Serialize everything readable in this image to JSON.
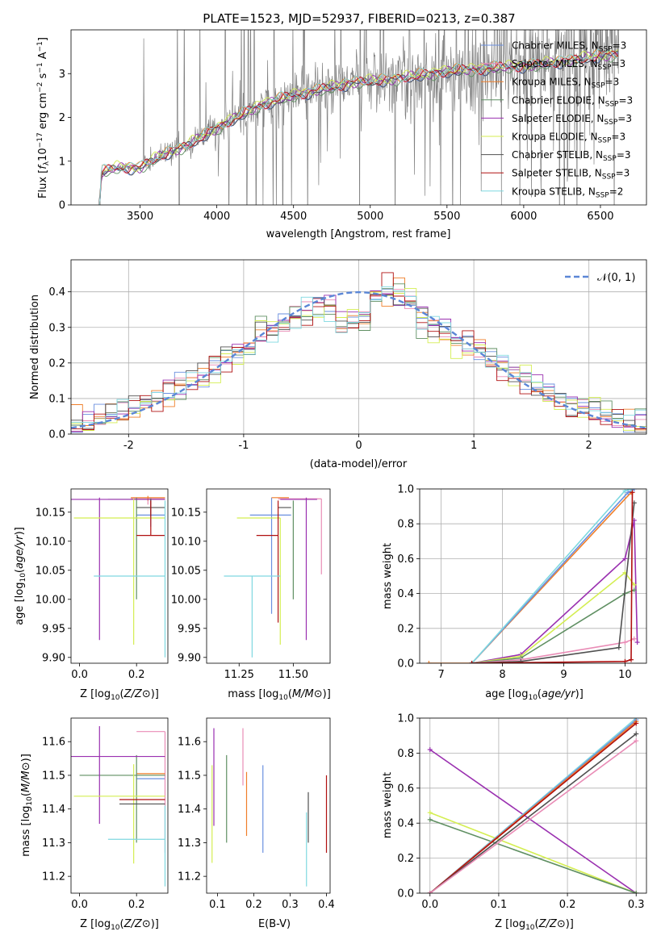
{
  "figure": {
    "title": "PLATE=1523, MJD=52937, FIBERID=0213, z=0.387"
  },
  "colors": {
    "data_spectrum": "#808080",
    "chabrier_miles": "#6a8fdf",
    "salpeter_miles": "#e98cb6",
    "kroupa_miles": "#ef7f2a",
    "chabrier_elodie": "#5f8f62",
    "salpeter_elodie": "#9a30b0",
    "kroupa_elodie": "#d4ee52",
    "chabrier_stelib": "#505050",
    "salpeter_stelib": "#b01010",
    "kroupa_stelib": "#7fd8e0",
    "gaussian": "#5b86d6",
    "grid": "#b0b0b0"
  },
  "legend_spectrum": [
    {
      "name": "Chabrier MILES, N",
      "sub": "SSP",
      "suffix": "=3",
      "color_key": "chabrier_miles"
    },
    {
      "name": "Salpeter MILES, N",
      "sub": "SSP",
      "suffix": "=3",
      "color_key": "salpeter_miles"
    },
    {
      "name": "Kroupa MILES, N",
      "sub": "SSP",
      "suffix": "=3",
      "color_key": "kroupa_miles"
    },
    {
      "name": "Chabrier ELODIE, N",
      "sub": "SSP",
      "suffix": "=3",
      "color_key": "chabrier_elodie"
    },
    {
      "name": "Salpeter ELODIE, N",
      "sub": "SSP",
      "suffix": "=3",
      "color_key": "salpeter_elodie"
    },
    {
      "name": "Kroupa ELODIE, N",
      "sub": "SSP",
      "suffix": "=3",
      "color_key": "kroupa_elodie"
    },
    {
      "name": "Chabrier STELIB, N",
      "sub": "SSP",
      "suffix": "=3",
      "color_key": "chabrier_stelib"
    },
    {
      "name": "Salpeter STELIB, N",
      "sub": "SSP",
      "suffix": "=3",
      "color_key": "salpeter_stelib"
    },
    {
      "name": "Kroupa STELIB, N",
      "sub": "SSP",
      "suffix": "=2",
      "color_key": "kroupa_stelib"
    }
  ],
  "legend_residual": {
    "label": "𝒩(0, 1)"
  },
  "chart_data": [
    {
      "id": "spectrum",
      "type": "line",
      "xlabel": "wavelength [Angstrom, rest frame]",
      "ylabel_parts": [
        "Flux [",
        "f",
        "λ",
        "10",
        "−17",
        " erg cm",
        "−2",
        " s",
        "−1",
        " A",
        "−1",
        "]"
      ],
      "xlim": [
        3050,
        6800
      ],
      "ylim": [
        0,
        4
      ],
      "xticks": [
        3500,
        4000,
        4500,
        5000,
        5500,
        6000,
        6500
      ],
      "yticks": [
        0,
        1,
        2,
        3
      ],
      "data_range": [
        3230,
        6620
      ],
      "model_anchors": {
        "x": [
          3230,
          3250,
          3350,
          3500,
          3650,
          3800,
          3950,
          4100,
          4300,
          4500,
          4700,
          4900,
          5100,
          5300,
          5500,
          5700,
          5900,
          6100,
          6300,
          6500,
          6620
        ],
        "y": [
          0.0,
          0.75,
          0.85,
          0.85,
          1.15,
          1.35,
          1.65,
          1.95,
          2.3,
          2.5,
          2.65,
          2.8,
          2.85,
          2.95,
          3.05,
          3.1,
          3.15,
          3.2,
          3.3,
          3.4,
          3.45
        ]
      },
      "grid": false
    },
    {
      "id": "residual_hist",
      "type": "histogram",
      "xlabel": "(data-model)/error",
      "ylabel": "Normed distribution",
      "xlim": [
        -2.5,
        2.5
      ],
      "ylim": [
        0,
        0.49
      ],
      "xticks": [
        -2,
        -1,
        0,
        1,
        2
      ],
      "yticks": [
        0.0,
        0.1,
        0.2,
        0.3,
        0.4
      ],
      "bin_width": 0.1,
      "reference_curve": "normal(0,1)",
      "grid": true
    },
    {
      "id": "age_vs_Z",
      "type": "errorbar",
      "xlabel": "Z [log10(Z/Z⊙)]",
      "ylabel": "age [log10(age/yr)]",
      "xlim": [
        -0.03,
        0.31
      ],
      "ylim": [
        9.89,
        10.19
      ],
      "xticks": [
        0.0,
        0.2
      ],
      "yticks": [
        9.9,
        9.95,
        10.0,
        10.05,
        10.1,
        10.15
      ],
      "points": [
        {
          "color_key": "chabrier_miles",
          "x": 0.25,
          "xerr": [
            0.05,
            0.05
          ],
          "y": 10.145,
          "yerr": [
            0.02,
            0.03
          ]
        },
        {
          "color_key": "salpeter_miles",
          "x": 0.24,
          "xerr": [
            0.06,
            0.06
          ],
          "y": 10.173,
          "yerr": [
            0.01,
            0.003
          ]
        },
        {
          "color_key": "kroupa_miles",
          "x": 0.24,
          "xerr": [
            0.06,
            0.06
          ],
          "y": 10.175,
          "yerr": [
            0.005,
            0.003
          ]
        },
        {
          "color_key": "chabrier_elodie",
          "x": 0.2,
          "xerr": [
            0.1,
            0.1
          ],
          "y": 10.172,
          "yerr": [
            0.172,
            0.003
          ]
        },
        {
          "color_key": "salpeter_elodie",
          "x": 0.07,
          "xerr": [
            0.1,
            0.23
          ],
          "y": 10.172,
          "yerr": [
            0.242,
            0.003
          ]
        },
        {
          "color_key": "kroupa_elodie",
          "x": 0.19,
          "xerr": [
            0.21,
            0.11
          ],
          "y": 10.14,
          "yerr": [
            0.218,
            0.033
          ]
        },
        {
          "color_key": "chabrier_stelib",
          "x": 0.25,
          "xerr": [
            0.05,
            0.05
          ],
          "y": 10.158,
          "yerr": [
            0.015,
            0.015
          ]
        },
        {
          "color_key": "salpeter_stelib",
          "x": 0.25,
          "xerr": [
            0.05,
            0.05
          ],
          "y": 10.11,
          "yerr": [
            0.0,
            0.06
          ]
        },
        {
          "color_key": "kroupa_stelib",
          "x": 0.15,
          "xerr": [
            0.1,
            0.15
          ],
          "y": 10.04,
          "yerr": [
            0.0,
            0.0
          ]
        },
        {
          "color_key": "kroupa_stelib",
          "x": 0.3,
          "xerr": [
            0.0,
            0.0
          ],
          "y": 10.0,
          "yerr": [
            0.1,
            0.17
          ]
        }
      ]
    },
    {
      "id": "age_vs_mass",
      "type": "errorbar",
      "xlabel": "mass [log10(M/M⊙)]",
      "ylabel": "",
      "xlim": [
        11.1,
        11.67
      ],
      "ylim": [
        9.89,
        10.19
      ],
      "xticks": [
        11.25,
        11.5
      ],
      "yticks": [
        9.9,
        9.95,
        10.0,
        10.05,
        10.1,
        10.15
      ],
      "points": [
        {
          "color_key": "chabrier_miles",
          "x": 11.4,
          "xerr": [
            0.1,
            0.09
          ],
          "y": 10.145,
          "yerr": [
            0.17,
            0.03
          ]
        },
        {
          "color_key": "salpeter_miles",
          "x": 11.63,
          "xerr": [
            0.2,
            0.0
          ],
          "y": 10.173,
          "yerr": [
            0.13,
            0.0
          ]
        },
        {
          "color_key": "kroupa_miles",
          "x": 11.48,
          "xerr": [
            0.08,
            0.0
          ],
          "y": 10.175,
          "yerr": [
            0.0,
            0.0
          ]
        },
        {
          "color_key": "chabrier_elodie",
          "x": 11.5,
          "xerr": [
            0.0,
            0.0
          ],
          "y": 10.1,
          "yerr": [
            0.1,
            0.07
          ]
        },
        {
          "color_key": "salpeter_elodie",
          "x": 11.56,
          "xerr": [
            0.12,
            0.05
          ],
          "y": 10.172,
          "yerr": [
            0.242,
            0.003
          ]
        },
        {
          "color_key": "kroupa_elodie",
          "x": 11.44,
          "xerr": [
            0.2,
            0.0
          ],
          "y": 10.14,
          "yerr": [
            0.218,
            0.0
          ]
        },
        {
          "color_key": "chabrier_stelib",
          "x": 11.43,
          "xerr": [
            0.0,
            0.06
          ],
          "y": 10.158,
          "yerr": [
            0.0,
            0.0
          ]
        },
        {
          "color_key": "salpeter_stelib",
          "x": 11.43,
          "xerr": [
            0.1,
            0.0
          ],
          "y": 10.11,
          "yerr": [
            0.15,
            0.06
          ]
        },
        {
          "color_key": "kroupa_stelib",
          "x": 11.31,
          "xerr": [
            0.13,
            0.13
          ],
          "y": 10.04,
          "yerr": [
            0.14,
            0.0
          ]
        }
      ]
    },
    {
      "id": "mass_weight_vs_age",
      "type": "line",
      "xlabel": "age [log10(age/yr)]",
      "ylabel": "mass weight",
      "xlim": [
        6.65,
        10.35
      ],
      "ylim": [
        0,
        1
      ],
      "xticks": [
        7,
        8,
        9,
        10
      ],
      "yticks": [
        0.0,
        0.2,
        0.4,
        0.6,
        0.8,
        1.0
      ],
      "grid": true,
      "series": [
        {
          "color_key": "kroupa_miles",
          "x": [
            6.8,
            7.5,
            10.1,
            10.12
          ],
          "y": [
            0.0,
            0.0,
            0.98,
            1.0
          ]
        },
        {
          "color_key": "chabrier_miles",
          "x": [
            7.5,
            10.05,
            10.15
          ],
          "y": [
            0.0,
            0.98,
            1.0
          ]
        },
        {
          "color_key": "kroupa_stelib",
          "x": [
            7.5,
            10.0,
            10.1
          ],
          "y": [
            0.0,
            0.99,
            1.0
          ]
        },
        {
          "color_key": "salpeter_elodie",
          "x": [
            7.5,
            8.3,
            10.0,
            10.15,
            10.2
          ],
          "y": [
            0.0,
            0.05,
            0.6,
            0.82,
            0.12
          ]
        },
        {
          "color_key": "kroupa_elodie",
          "x": [
            7.5,
            8.3,
            10.0,
            10.15
          ],
          "y": [
            0.0,
            0.04,
            0.52,
            0.45
          ]
        },
        {
          "color_key": "chabrier_elodie",
          "x": [
            7.5,
            8.3,
            10.0,
            10.15
          ],
          "y": [
            0.0,
            0.03,
            0.4,
            0.42
          ]
        },
        {
          "color_key": "salpeter_miles",
          "x": [
            7.5,
            8.3,
            10.0,
            10.15
          ],
          "y": [
            0.0,
            0.02,
            0.12,
            0.14
          ]
        },
        {
          "color_key": "chabrier_stelib",
          "x": [
            7.5,
            8.3,
            9.9,
            10.15
          ],
          "y": [
            0.0,
            0.01,
            0.09,
            0.92
          ]
        },
        {
          "color_key": "salpeter_stelib",
          "x": [
            7.5,
            10.0,
            10.1,
            10.12
          ],
          "y": [
            0.0,
            0.01,
            0.02,
            0.98
          ]
        }
      ]
    },
    {
      "id": "mass_vs_Z",
      "type": "errorbar",
      "xlabel": "Z [log10(Z/Z⊙)]",
      "ylabel": "mass [log10(M/M⊙)]",
      "xlim": [
        -0.03,
        0.31
      ],
      "ylim": [
        11.15,
        11.67
      ],
      "xticks": [
        0.0,
        0.2
      ],
      "yticks": [
        11.2,
        11.3,
        11.4,
        11.5,
        11.6
      ],
      "points": [
        {
          "color_key": "chabrier_miles",
          "x": 0.25,
          "xerr": [
            0.05,
            0.05
          ],
          "y": 11.49,
          "yerr": [
            0.0,
            0.0
          ]
        },
        {
          "color_key": "salpeter_miles",
          "x": 0.3,
          "xerr": [
            0.1,
            0.0
          ],
          "y": 11.63,
          "yerr": [
            0.36,
            0.0
          ]
        },
        {
          "color_key": "kroupa_miles",
          "x": 0.25,
          "xerr": [
            0.05,
            0.05
          ],
          "y": 11.505,
          "yerr": [
            0.0,
            0.0
          ]
        },
        {
          "color_key": "chabrier_elodie",
          "x": 0.2,
          "xerr": [
            0.2,
            0.1
          ],
          "y": 11.5,
          "yerr": [
            0.2,
            0.06
          ]
        },
        {
          "color_key": "salpeter_elodie",
          "x": 0.07,
          "xerr": [
            0.1,
            0.23
          ],
          "y": 11.556,
          "yerr": [
            0.2,
            0.09
          ]
        },
        {
          "color_key": "kroupa_elodie",
          "x": 0.19,
          "xerr": [
            0.21,
            0.11
          ],
          "y": 11.438,
          "yerr": [
            0.2,
            0.095
          ]
        },
        {
          "color_key": "chabrier_stelib",
          "x": 0.2,
          "xerr": [
            0.06,
            0.1
          ],
          "y": 11.415,
          "yerr": [
            0.0,
            0.0
          ]
        },
        {
          "color_key": "salpeter_stelib",
          "x": 0.2,
          "xerr": [
            0.06,
            0.1
          ],
          "y": 11.428,
          "yerr": [
            0.0,
            0.0
          ]
        },
        {
          "color_key": "kroupa_stelib",
          "x": 0.3,
          "xerr": [
            0.2,
            0.0
          ],
          "y": 11.31,
          "yerr": [
            0.14,
            0.1
          ]
        }
      ]
    },
    {
      "id": "mass_vs_ebv",
      "type": "errorbar",
      "xlabel": "E(B-V)",
      "ylabel": "",
      "xlim": [
        0.07,
        0.41
      ],
      "ylim": [
        11.15,
        11.67
      ],
      "xticks": [
        0.1,
        0.2,
        0.3,
        0.4
      ],
      "yticks": [
        11.2,
        11.3,
        11.4,
        11.5,
        11.6
      ],
      "points": [
        {
          "color_key": "chabrier_miles",
          "x": 0.225,
          "yerr": [
            11.27,
            11.53
          ]
        },
        {
          "color_key": "salpeter_miles",
          "x": 0.17,
          "yerr": [
            11.47,
            11.64
          ]
        },
        {
          "color_key": "kroupa_miles",
          "x": 0.18,
          "yerr": [
            11.32,
            11.51
          ]
        },
        {
          "color_key": "chabrier_elodie",
          "x": 0.125,
          "yerr": [
            11.3,
            11.56
          ]
        },
        {
          "color_key": "salpeter_elodie",
          "x": 0.09,
          "yerr": [
            11.35,
            11.64
          ]
        },
        {
          "color_key": "kroupa_elodie",
          "x": 0.085,
          "yerr": [
            11.24,
            11.53
          ]
        },
        {
          "color_key": "chabrier_stelib",
          "x": 0.35,
          "yerr": [
            11.3,
            11.45
          ]
        },
        {
          "color_key": "salpeter_stelib",
          "x": 0.4,
          "yerr": [
            11.27,
            11.5
          ]
        },
        {
          "color_key": "kroupa_stelib",
          "x": 0.345,
          "yerr": [
            11.17,
            11.39
          ]
        }
      ]
    },
    {
      "id": "mass_weight_vs_Z",
      "type": "line",
      "xlabel": "Z [log10(Z/Z⊙)]",
      "ylabel": "mass weight",
      "xlim": [
        -0.015,
        0.315
      ],
      "ylim": [
        0,
        1
      ],
      "xticks": [
        0.0,
        0.1,
        0.2,
        0.3
      ],
      "yticks": [
        0.0,
        0.2,
        0.4,
        0.6,
        0.8,
        1.0
      ],
      "grid": true,
      "series": [
        {
          "color_key": "salpeter_elodie",
          "x": [
            0.0,
            0.3
          ],
          "y": [
            0.82,
            0.0
          ]
        },
        {
          "color_key": "kroupa_elodie",
          "x": [
            0.0,
            0.3
          ],
          "y": [
            0.46,
            0.0
          ]
        },
        {
          "color_key": "chabrier_elodie",
          "x": [
            0.0,
            0.3
          ],
          "y": [
            0.42,
            0.0
          ]
        },
        {
          "color_key": "kroupa_stelib",
          "x": [
            0.0,
            0.3
          ],
          "y": [
            0.0,
            1.0
          ]
        },
        {
          "color_key": "chabrier_miles",
          "x": [
            0.0,
            0.3
          ],
          "y": [
            0.0,
            0.99
          ]
        },
        {
          "color_key": "kroupa_miles",
          "x": [
            0.0,
            0.3
          ],
          "y": [
            0.0,
            0.98
          ]
        },
        {
          "color_key": "salpeter_stelib",
          "x": [
            0.0,
            0.3
          ],
          "y": [
            0.0,
            0.97
          ]
        },
        {
          "color_key": "chabrier_stelib",
          "x": [
            0.0,
            0.3
          ],
          "y": [
            0.0,
            0.91
          ]
        },
        {
          "color_key": "salpeter_miles",
          "x": [
            0.0,
            0.3
          ],
          "y": [
            0.0,
            0.87
          ]
        }
      ]
    }
  ]
}
